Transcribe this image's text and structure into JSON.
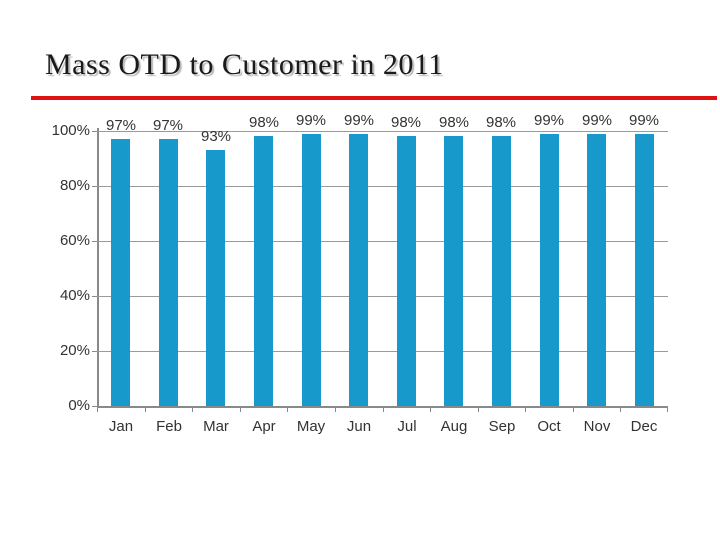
{
  "slide": {
    "title": "Mass OTD to Customer in 2011"
  },
  "colors": {
    "title_text": "#1a1a1a",
    "title_rule": "#df1212",
    "bar": "#1899cc",
    "gridline": "#9a9a9a",
    "axis": "#898989",
    "chart_text": "#333333"
  },
  "chart_data": {
    "type": "bar",
    "title": "Mass OTD to Customer in 2011",
    "categories": [
      "Jan",
      "Feb",
      "Mar",
      "Apr",
      "May",
      "Jun",
      "Jul",
      "Aug",
      "Sep",
      "Oct",
      "Nov",
      "Dec"
    ],
    "values": [
      97,
      97,
      93,
      98,
      99,
      99,
      98,
      98,
      98,
      99,
      99,
      99
    ],
    "value_labels": [
      "97%",
      "97%",
      "93%",
      "98%",
      "99%",
      "99%",
      "98%",
      "98%",
      "98%",
      "99%",
      "99%",
      "99%"
    ],
    "ytick_labels": [
      "100%",
      "80%",
      "60%",
      "40%",
      "20%",
      "0%"
    ],
    "ytick_values": [
      100,
      80,
      60,
      40,
      20,
      0
    ],
    "ylim": [
      0,
      100
    ],
    "xlabel": "",
    "ylabel": "",
    "grid": true,
    "legend": false,
    "data_labels_position": "outside-end"
  }
}
